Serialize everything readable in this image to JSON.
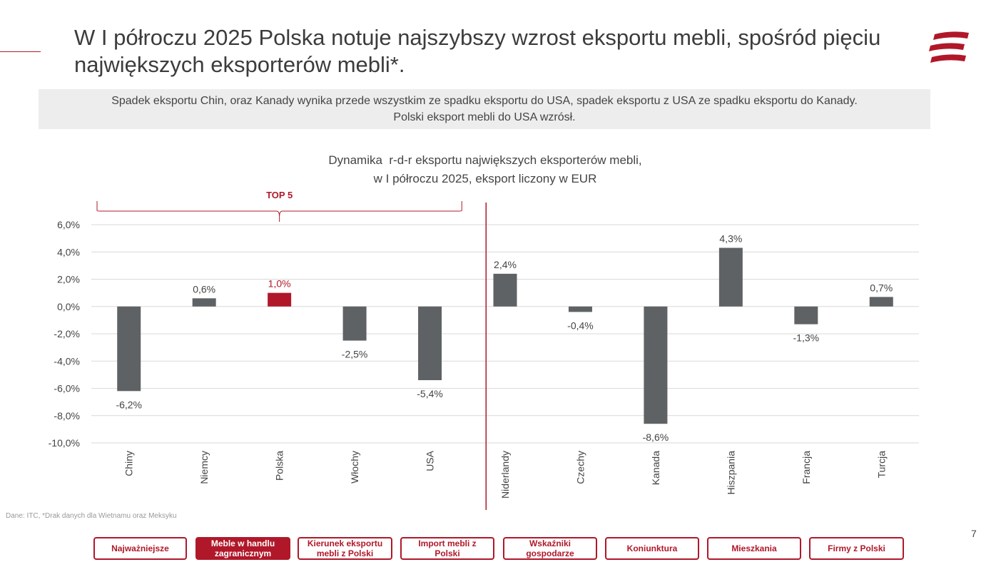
{
  "header": {
    "title": "W I półroczu 2025 Polska notuje najszybszy wzrost eksportu mebli, spośród pięciu największych eksporterów mebli*.",
    "subtitle_line1": "Spadek eksportu Chin, oraz Kanady wynika przede wszystkim ze spadku eksportu do USA, spadek eksportu z USA ze spadku eksportu do Kanady.",
    "subtitle_line2": "Polski eksport mebli do USA wzrósł."
  },
  "chart_data": {
    "type": "bar",
    "title_line1": "Dynamika  r-d-r eksportu największych eksporterów mebli,",
    "title_line2": "w I półroczu 2025, eksport liczony w EUR",
    "categories": [
      "Chiny",
      "Niemcy",
      "Polska",
      "Włochy",
      "USA",
      "Niderlandy",
      "Czechy",
      "Kanada",
      "Hiszpania",
      "Francja",
      "Turcja"
    ],
    "values": [
      -6.2,
      0.6,
      1.0,
      -2.5,
      -5.4,
      2.4,
      -0.4,
      -8.6,
      4.3,
      -1.3,
      0.7
    ],
    "value_labels": [
      "-6,2%",
      "0,6%",
      "1,0%",
      "-2,5%",
      "-5,4%",
      "2,4%",
      "-0,4%",
      "-8,6%",
      "4,3%",
      "-1,3%",
      "0,7%"
    ],
    "highlight_category": "Polska",
    "ylim": [
      -10,
      6
    ],
    "yticks": [
      6,
      4,
      2,
      0,
      -2,
      -4,
      -6,
      -8,
      -10
    ],
    "ytick_labels": [
      "6,0%",
      "4,0%",
      "2,0%",
      "0,0%",
      "-2,0%",
      "-4,0%",
      "-6,0%",
      "-8,0%",
      "-10,0%"
    ],
    "group_label": "TOP 5",
    "top_group_count": 5,
    "grid": true,
    "colors": {
      "bar": "#5f6264",
      "highlight": "#b0182a",
      "grid": "#d9d9d9",
      "axis_text": "#444444",
      "divider": "#b0182a"
    }
  },
  "footer": {
    "source": "Dane: ITC, *Drak danych dla Wietnamu oraz Meksyku",
    "page_number": "7"
  },
  "nav": {
    "items": [
      {
        "label": "Najważniejsze",
        "active": false
      },
      {
        "label": "Meble w handlu zagranicznym",
        "active": true
      },
      {
        "label": "Kierunek eksportu mebli z Polski",
        "active": false
      },
      {
        "label": "Import mebli z Polski",
        "active": false
      },
      {
        "label": "Wskaźniki gospodarze",
        "active": false
      },
      {
        "label": "Koniunktura",
        "active": false
      },
      {
        "label": "Mieszkania",
        "active": false
      },
      {
        "label": "Firmy z Polski",
        "active": false
      }
    ]
  },
  "brand": {
    "color": "#b0182a"
  }
}
